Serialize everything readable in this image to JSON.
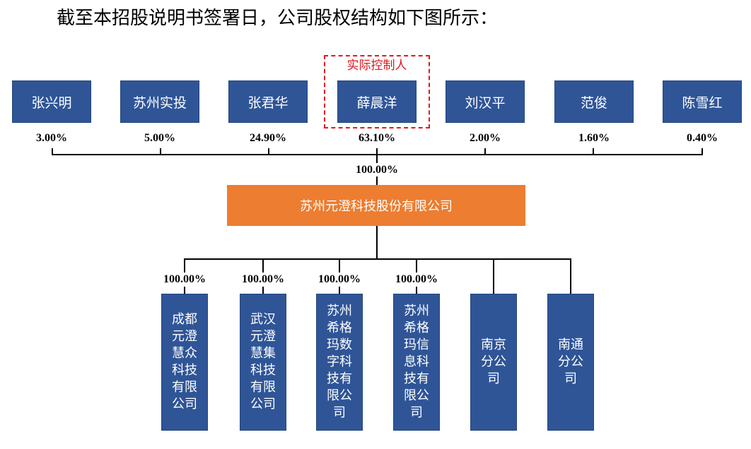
{
  "intro": "截至本招股说明书签署日，公司股权结构如下图所示：",
  "controller_label": "实际控制人",
  "shareholders": [
    {
      "name": "张兴明",
      "pct": "3.00%"
    },
    {
      "name": "苏州实投",
      "pct": "5.00%"
    },
    {
      "name": "张君华",
      "pct": "24.90%"
    },
    {
      "name": "薛晨洋",
      "pct": "63.10%"
    },
    {
      "name": "刘汉平",
      "pct": "2.00%"
    },
    {
      "name": "范俊",
      "pct": "1.60%"
    },
    {
      "name": "陈雪红",
      "pct": "0.40%"
    }
  ],
  "total_pct": "100.00%",
  "company": "苏州元澄科技股份有限公司",
  "subsidiaries": [
    {
      "name": "成都元澄慧众科技有限公司",
      "pct": "100.00%"
    },
    {
      "name": "武汉元澄慧集科技有限公司",
      "pct": "100.00%"
    },
    {
      "name": "苏州希格玛数字科技有限公司",
      "pct": "100.00%"
    },
    {
      "name": "苏州希格玛信息科技有限公司",
      "pct": "100.00%"
    },
    {
      "name": "南京分公司",
      "pct": ""
    },
    {
      "name": "南通分公司",
      "pct": ""
    }
  ],
  "colors": {
    "shareholder_box": "#2f5597",
    "company_box": "#ed7d31",
    "controller_border": "#e0191e"
  }
}
